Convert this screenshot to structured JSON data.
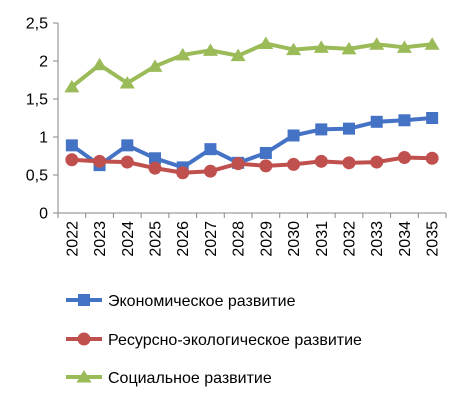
{
  "chart_data": {
    "type": "line",
    "title": "",
    "xlabel": "",
    "ylabel": "",
    "ylim": [
      0,
      2.5
    ],
    "yticks": [
      "0",
      "0,5",
      "1",
      "1,5",
      "2",
      "2,5"
    ],
    "ytick_values": [
      0,
      0.5,
      1,
      1.5,
      2,
      2.5
    ],
    "grid": "none",
    "legend_position": "bottom",
    "x": [
      "2022",
      "2023",
      "2024",
      "2025",
      "2026",
      "2027",
      "2028",
      "2029",
      "2030",
      "2031",
      "2032",
      "2033",
      "2034",
      "2035"
    ],
    "series": [
      {
        "name": "Экономическое развитие",
        "color": "#4472C4",
        "marker": "square",
        "values": [
          0.89,
          0.63,
          0.89,
          0.72,
          0.6,
          0.84,
          0.66,
          0.79,
          1.02,
          1.1,
          1.11,
          1.2,
          1.22,
          1.25
        ]
      },
      {
        "name": "Ресурсно-экологическое развитие",
        "color": "#C0504D",
        "marker": "circle",
        "values": [
          0.7,
          0.68,
          0.67,
          0.59,
          0.53,
          0.55,
          0.65,
          0.62,
          0.64,
          0.68,
          0.66,
          0.67,
          0.73,
          0.72
        ]
      },
      {
        "name": "Социальное развитие",
        "color": "#9BBB59",
        "marker": "triangle",
        "values": [
          1.66,
          1.95,
          1.71,
          1.93,
          2.08,
          2.14,
          2.07,
          2.23,
          2.15,
          2.18,
          2.16,
          2.22,
          2.18,
          2.22
        ]
      }
    ]
  }
}
